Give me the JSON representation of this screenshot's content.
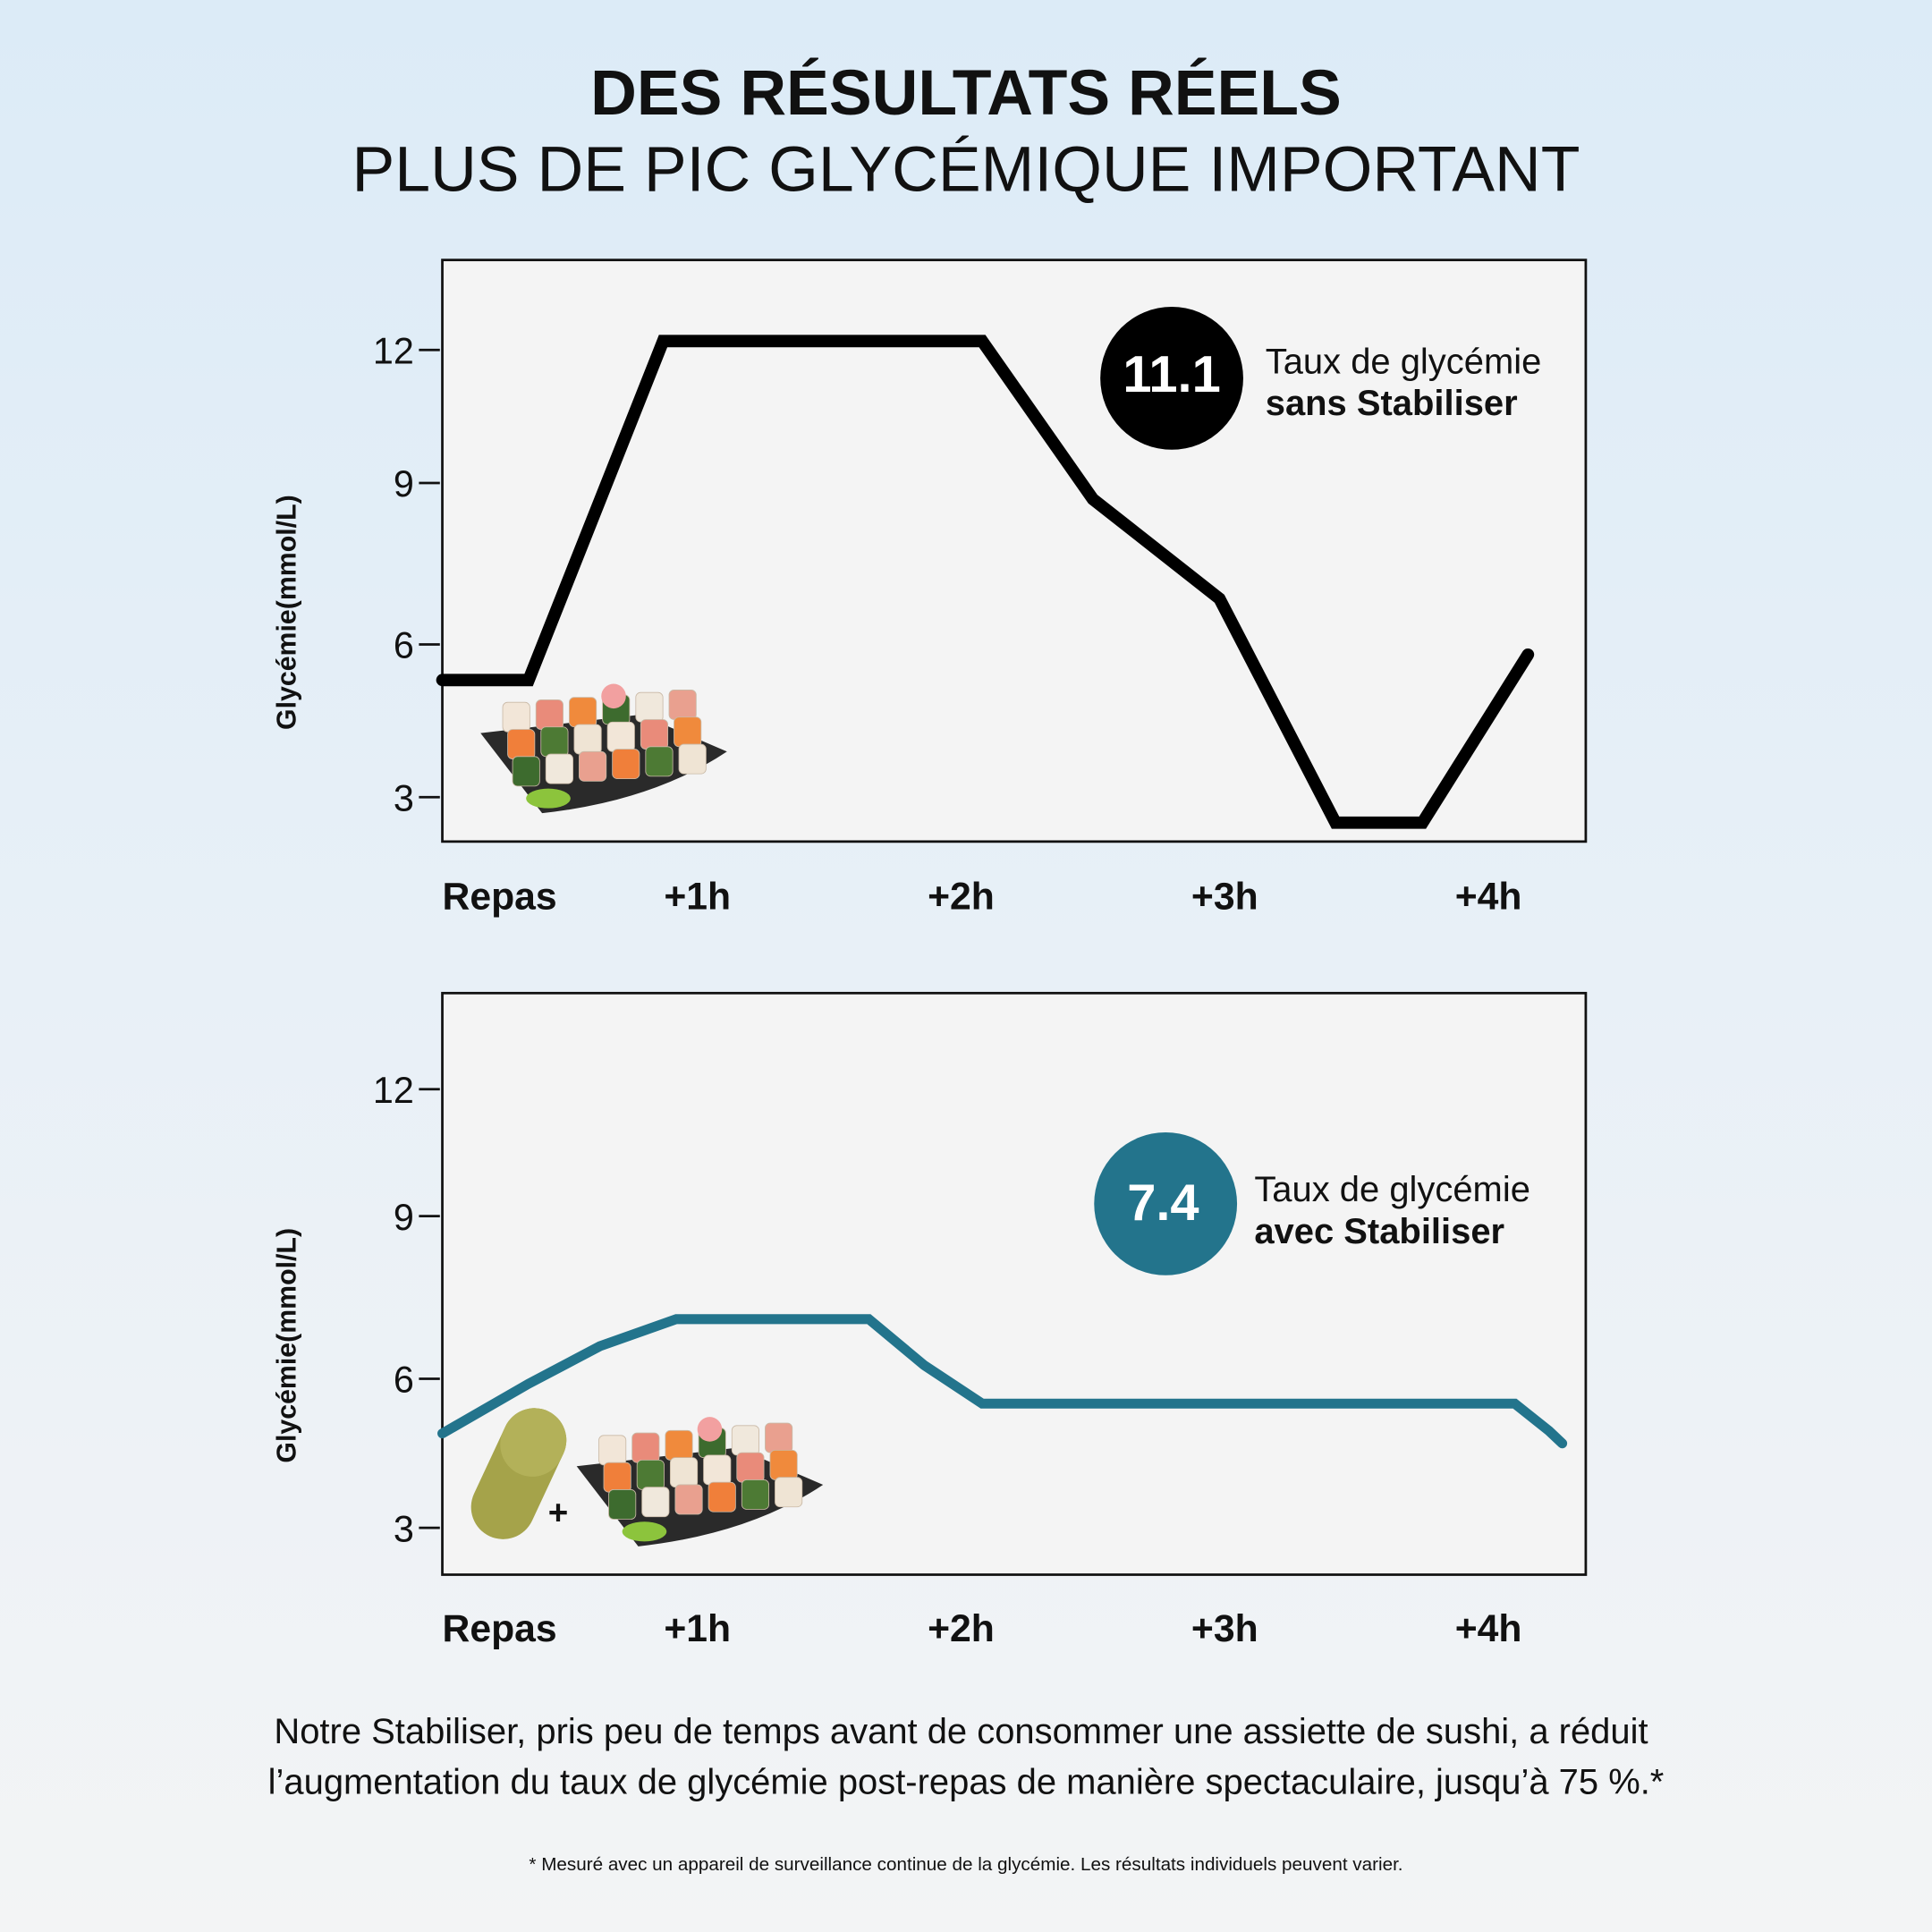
{
  "title_line1": "DES RÉSULTATS RÉELS",
  "title_line2": "PLUS DE PIC GLYCÉMIQUE IMPORTANT",
  "colors": {
    "without": "#000000",
    "with": "#23748c",
    "plot_bg": "#f4f4f4",
    "capsule": "#a5a34a"
  },
  "chart_data": [
    {
      "type": "line",
      "ylabel": "Glycémie(mmol/L)",
      "yticks": [
        12,
        9,
        6,
        3
      ],
      "xticks": [
        {
          "label": "Repas",
          "h": 0
        },
        {
          "label": "+1h",
          "h": 1
        },
        {
          "label": "+2h",
          "h": 2
        },
        {
          "label": "+3h",
          "h": 3
        },
        {
          "label": "+4h",
          "h": 4
        }
      ],
      "series": [
        {
          "color": "#000000",
          "x": [
            0,
            0.36,
            0.87,
            2.08,
            2.5,
            2.98,
            3.42,
            3.75,
            4.15
          ],
          "y": [
            5.3,
            5.3,
            12.2,
            12.2,
            8.7,
            6.85,
            2.5,
            2.5,
            5.8
          ]
        }
      ],
      "badge": {
        "value": "11.1",
        "color": "#000000",
        "line1": "Taux de glycémie",
        "line2": "sans Stabiliser"
      },
      "illustration": "sushi-plate"
    },
    {
      "type": "line",
      "ylabel": "Glycémie(mmol/L)",
      "yticks": [
        12,
        9,
        6,
        3
      ],
      "xticks": [
        {
          "label": "Repas",
          "h": 0
        },
        {
          "label": "+1h",
          "h": 1
        },
        {
          "label": "+2h",
          "h": 2
        },
        {
          "label": "+3h",
          "h": 3
        },
        {
          "label": "+4h",
          "h": 4
        }
      ],
      "series": [
        {
          "color": "#23748c",
          "x": [
            0,
            0.36,
            0.63,
            0.92,
            1.65,
            1.86,
            2.08,
            4.1,
            4.23,
            4.28
          ],
          "y": [
            4.9,
            5.9,
            6.6,
            7.1,
            7.1,
            6.25,
            5.5,
            5.5,
            4.95,
            4.7
          ]
        }
      ],
      "badge": {
        "value": "7.4",
        "color": "#23748c",
        "line1": "Taux de glycémie",
        "line2": "avec Stabiliser"
      },
      "plus_sign": "+",
      "illustration": "capsule-plus-sushi-plate"
    }
  ],
  "caption_line1": "Notre Stabiliser, pris peu de temps avant de consommer une assiette de sushi, a réduit",
  "caption_line2": "l’augmentation du taux de glycémie post-repas de manière spectaculaire, jusqu’à 75 %.*",
  "footnote": "* Mesuré avec un appareil de surveillance continue de la glycémie. Les résultats individuels peuvent varier."
}
